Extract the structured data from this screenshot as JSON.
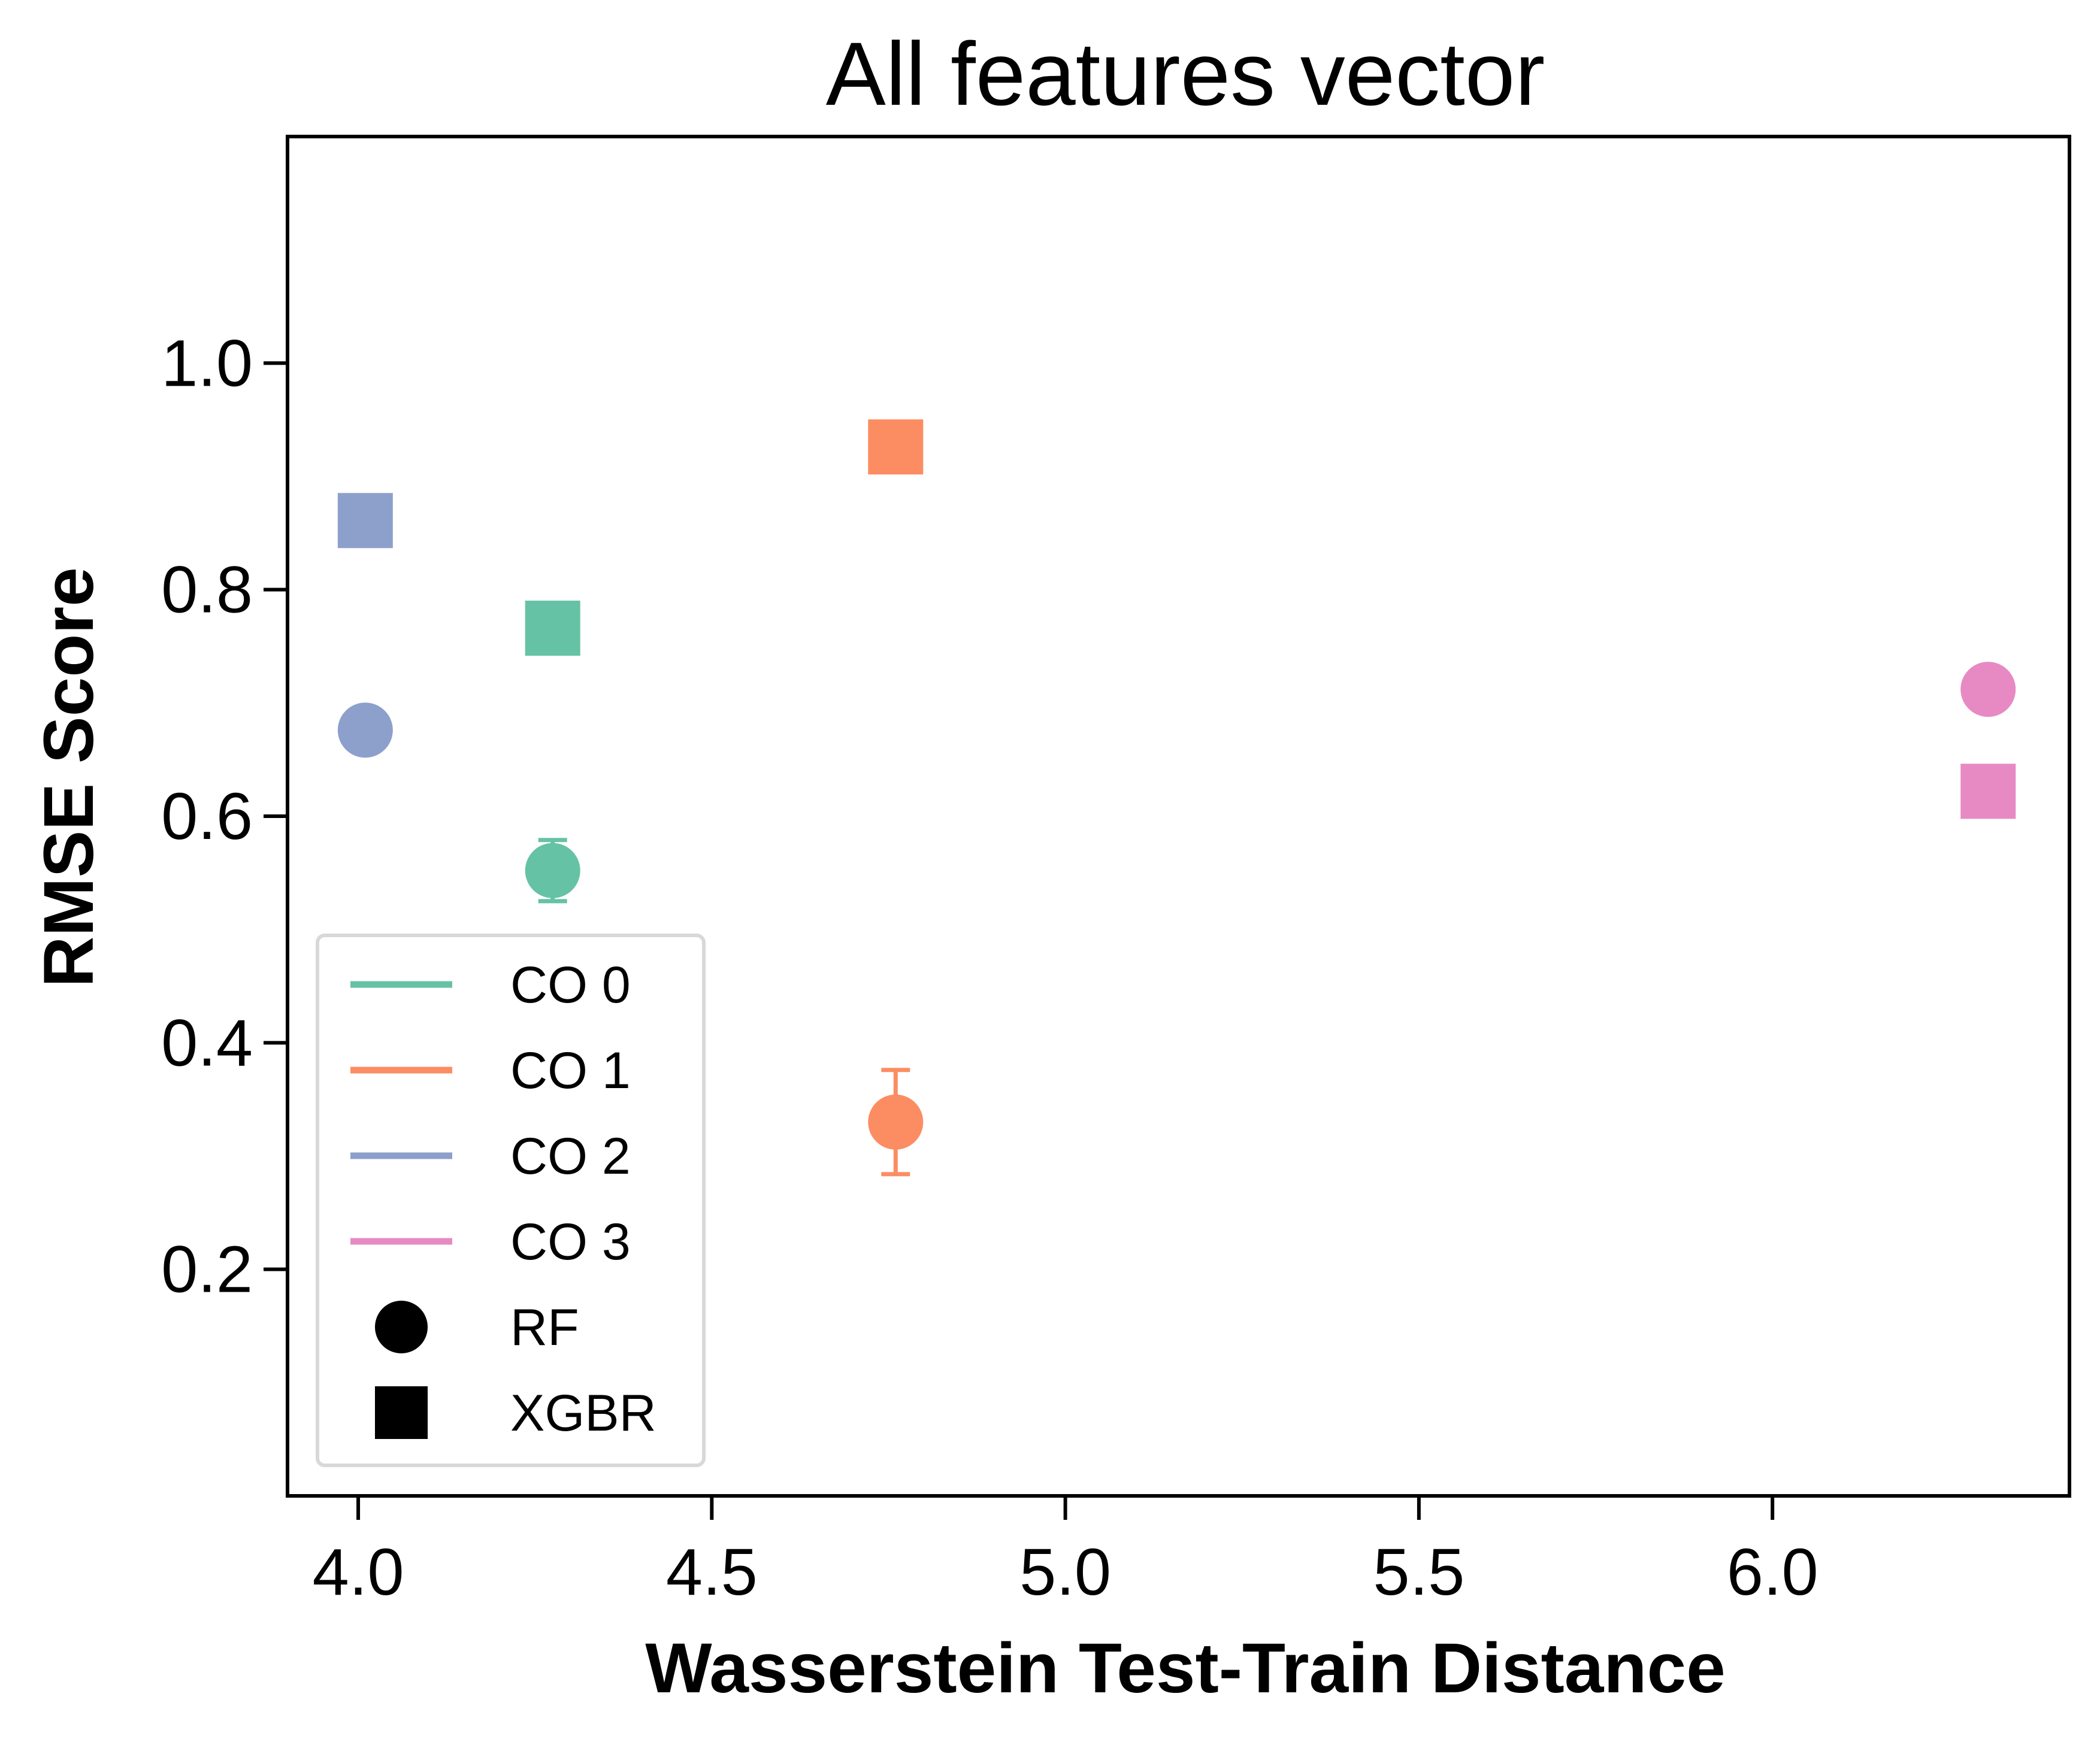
{
  "chart_data": {
    "type": "scatter",
    "title": "All features vector",
    "xlabel": "Wasserstein Test-Train Distance",
    "ylabel": "RMSE Score",
    "xlim": [
      3.9,
      6.42
    ],
    "ylim": [
      0.0,
      1.2
    ],
    "xticks": [
      4.0,
      4.5,
      5.0,
      5.5,
      6.0
    ],
    "xtick_labels": [
      "4.0",
      "4.5",
      "5.0",
      "5.5",
      "6.0"
    ],
    "yticks": [
      0.2,
      0.4,
      0.6,
      0.8,
      1.0
    ],
    "ytick_labels": [
      "0.2",
      "0.4",
      "0.6",
      "0.8",
      "1.0"
    ],
    "grid": false,
    "legend_position": "lower-left",
    "series": [
      {
        "name": "CO 0",
        "color": "#66c2a5",
        "points": [
          {
            "model": "RF",
            "marker": "circle",
            "x": 4.275,
            "y": 0.552,
            "err": 0.027
          },
          {
            "model": "XGBR",
            "marker": "square",
            "x": 4.275,
            "y": 0.766
          }
        ]
      },
      {
        "name": "CO 1",
        "color": "#fc8d62",
        "points": [
          {
            "model": "RF",
            "marker": "circle",
            "x": 4.76,
            "y": 0.33,
            "err": 0.046
          },
          {
            "model": "XGBR",
            "marker": "square",
            "x": 4.76,
            "y": 0.926
          }
        ]
      },
      {
        "name": "CO 2",
        "color": "#8da0cb",
        "points": [
          {
            "model": "RF",
            "marker": "circle",
            "x": 4.01,
            "y": 0.676,
            "err": 0.0
          },
          {
            "model": "XGBR",
            "marker": "square",
            "x": 4.01,
            "y": 0.861
          }
        ]
      },
      {
        "name": "CO 3",
        "color": "#e78ac3",
        "points": [
          {
            "model": "RF",
            "marker": "circle",
            "x": 6.305,
            "y": 0.712,
            "err": 0.004
          },
          {
            "model": "XGBR",
            "marker": "square",
            "x": 6.305,
            "y": 0.622
          }
        ]
      }
    ],
    "legend": [
      {
        "label": "CO 0",
        "kind": "line",
        "color": "#66c2a5"
      },
      {
        "label": "CO 1",
        "kind": "line",
        "color": "#fc8d62"
      },
      {
        "label": "CO 2",
        "kind": "line",
        "color": "#8da0cb"
      },
      {
        "label": "CO 3",
        "kind": "line",
        "color": "#e78ac3"
      },
      {
        "label": "RF",
        "kind": "circle",
        "color": "#000000"
      },
      {
        "label": "XGBR",
        "kind": "square",
        "color": "#000000"
      }
    ]
  }
}
